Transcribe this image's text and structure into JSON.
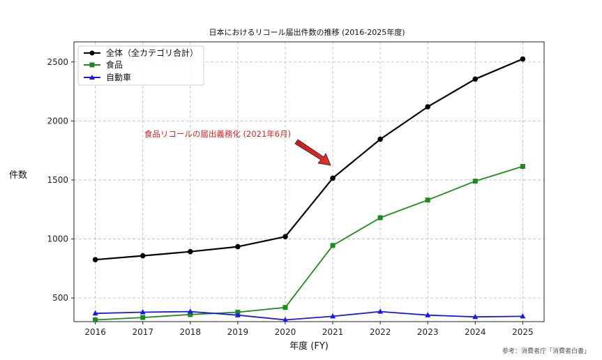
{
  "chart_data": {
    "type": "line",
    "title": "日本におけるリコール届出件数の推移 (2016-2025年度)",
    "xlabel": "年度 (FY)",
    "ylabel": "件数",
    "x": [
      2016,
      2017,
      2018,
      2019,
      2020,
      2021,
      2022,
      2023,
      2024,
      2025
    ],
    "xlim": [
      2015.55,
      2025.45
    ],
    "ylim": [
      300,
      2670
    ],
    "yticks": [
      500,
      1000,
      1500,
      2000,
      2500
    ],
    "grid": true,
    "legend_position": "top-left",
    "series": [
      {
        "name": "全体（全カテゴリ合計）",
        "color": "#000000",
        "marker": "circle",
        "values": [
          825,
          858,
          893,
          935,
          1020,
          1515,
          1845,
          2120,
          2355,
          2525
        ]
      },
      {
        "name": "食品",
        "color": "#1e8a1e",
        "marker": "square",
        "values": [
          315,
          335,
          360,
          380,
          420,
          945,
          1180,
          1330,
          1490,
          1615
        ]
      },
      {
        "name": "自動車",
        "color": "#1a1ae6",
        "marker": "triangle",
        "values": [
          370,
          380,
          385,
          355,
          315,
          345,
          385,
          355,
          340,
          345
        ]
      }
    ],
    "annotation": {
      "text": "食品リコールの届出義務化 (2021年6月)",
      "x": 2021,
      "y": 1515,
      "color": "#e02020"
    },
    "source": "参考：消費者庁「消費者白書」"
  }
}
